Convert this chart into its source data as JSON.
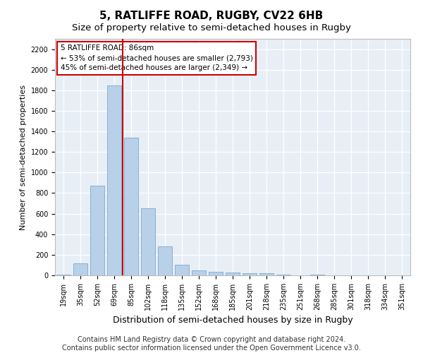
{
  "title": "5, RATLIFFE ROAD, RUGBY, CV22 6HB",
  "subtitle": "Size of property relative to semi-detached houses in Rugby",
  "xlabel": "Distribution of semi-detached houses by size in Rugby",
  "ylabel": "Number of semi-detached properties",
  "categories": [
    "19sqm",
    "35sqm",
    "52sqm",
    "69sqm",
    "85sqm",
    "102sqm",
    "118sqm",
    "135sqm",
    "152sqm",
    "168sqm",
    "185sqm",
    "201sqm",
    "218sqm",
    "235sqm",
    "251sqm",
    "268sqm",
    "285sqm",
    "301sqm",
    "318sqm",
    "334sqm",
    "351sqm"
  ],
  "values": [
    10,
    120,
    870,
    1850,
    1340,
    650,
    280,
    100,
    45,
    35,
    25,
    20,
    20,
    5,
    0,
    5,
    0,
    0,
    0,
    0,
    0
  ],
  "bar_color": "#b8d0e8",
  "bar_edge_color": "#7aaad0",
  "vline_position": 3.5,
  "vline_color": "#cc0000",
  "annotation_line1": "5 RATLIFFE ROAD: 86sqm",
  "annotation_line2": "← 53% of semi-detached houses are smaller (2,793)",
  "annotation_line3": "45% of semi-detached houses are larger (2,349) →",
  "ylim": [
    0,
    2300
  ],
  "yticks": [
    0,
    200,
    400,
    600,
    800,
    1000,
    1200,
    1400,
    1600,
    1800,
    2000,
    2200
  ],
  "footer_line1": "Contains HM Land Registry data © Crown copyright and database right 2024.",
  "footer_line2": "Contains public sector information licensed under the Open Government Licence v3.0.",
  "fig_bg": "#ffffff",
  "plot_bg": "#e8eef5",
  "grid_color": "#ffffff",
  "title_fontsize": 11,
  "subtitle_fontsize": 9.5,
  "annot_fontsize": 7.5,
  "tick_fontsize": 7,
  "ylabel_fontsize": 8,
  "xlabel_fontsize": 9,
  "footer_fontsize": 7
}
